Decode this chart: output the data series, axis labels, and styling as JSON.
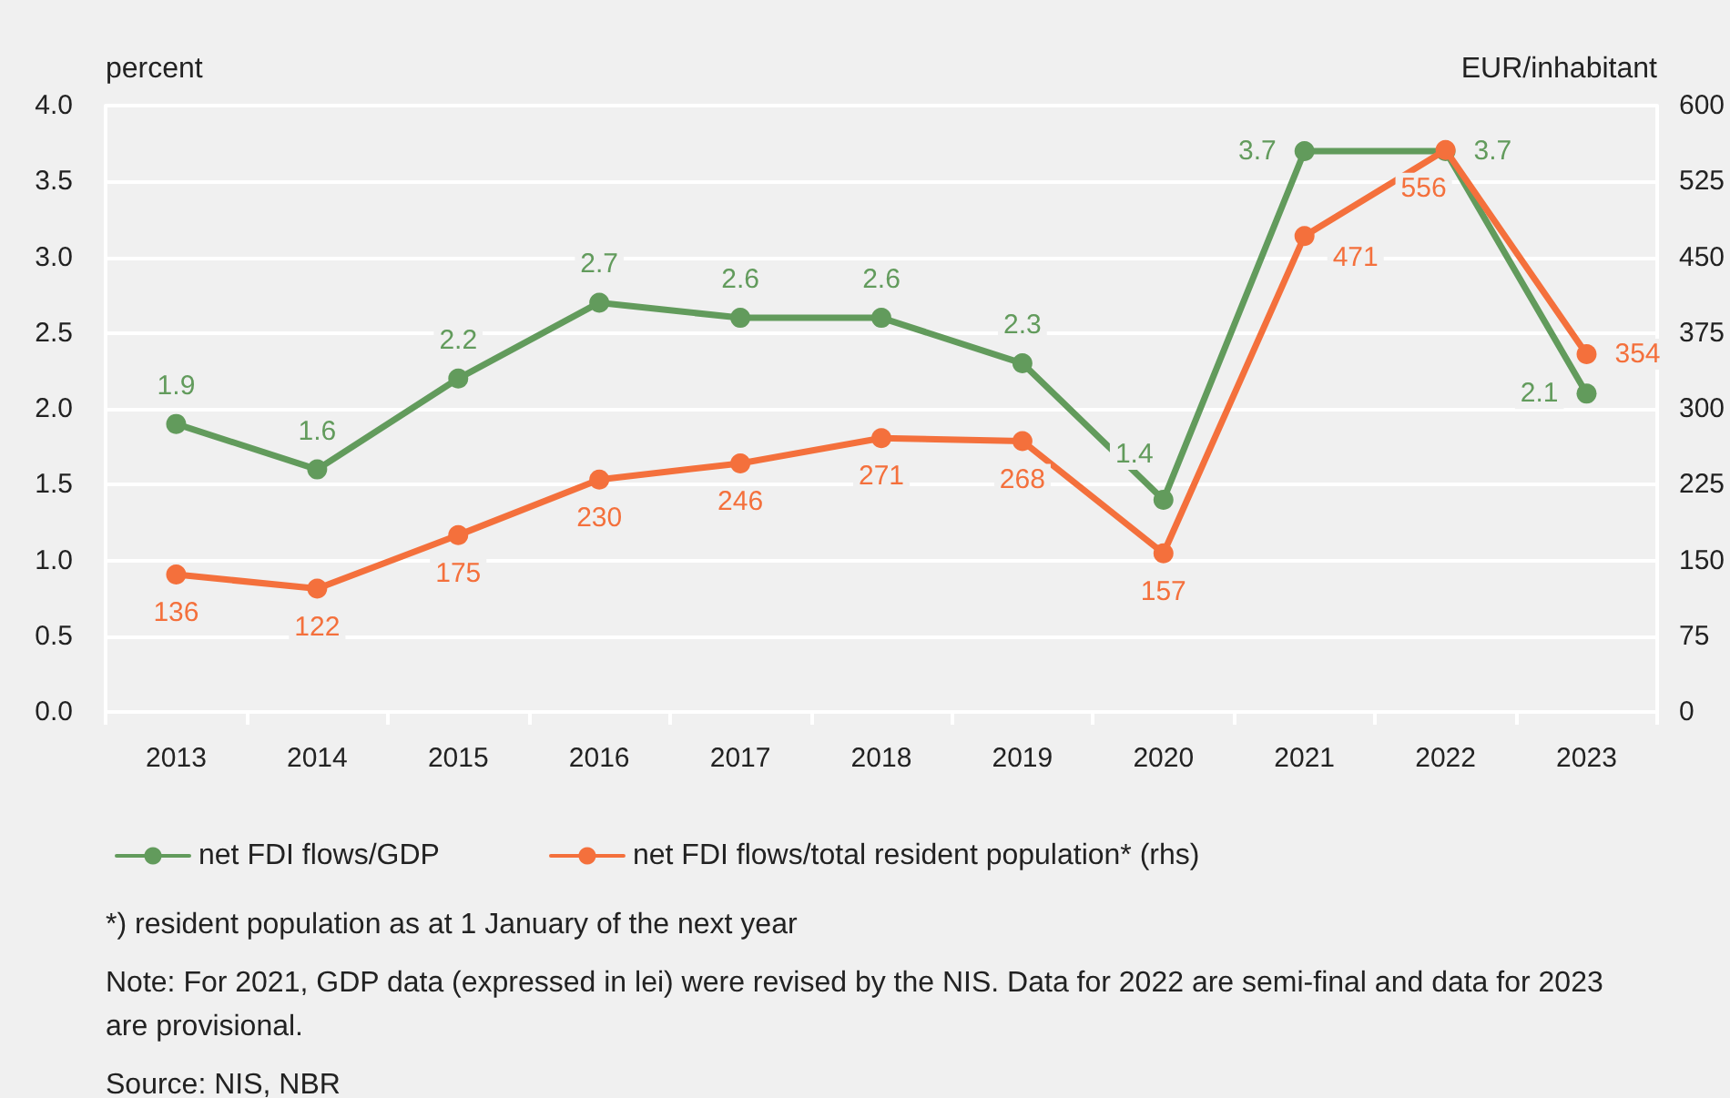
{
  "chart_data": {
    "type": "line",
    "ylabel": "percent",
    "y2label": "EUR/inhabitant",
    "categories": [
      "2013",
      "2014",
      "2015",
      "2016",
      "2017",
      "2018",
      "2019",
      "2020",
      "2021",
      "2022",
      "2023"
    ],
    "series": [
      {
        "name": "net FDI flows/GDP",
        "color": "#629b5c",
        "values": [
          1.9,
          1.6,
          2.2,
          2.7,
          2.6,
          2.6,
          2.3,
          1.4,
          3.7,
          3.7,
          2.1
        ]
      },
      {
        "name": "net FDI flows/total resident population* (rhs)",
        "color": "#f4703c",
        "axis": "y2",
        "values": [
          136,
          122,
          175,
          230,
          246,
          271,
          268,
          157,
          471,
          556,
          354
        ]
      }
    ],
    "ylim": [
      0,
      4
    ],
    "yticks": [
      {
        "value": 0,
        "label": "0.0"
      },
      0.5,
      {
        "value": 1,
        "label": "1.0"
      },
      1.5,
      {
        "value": 2,
        "label": "2.0"
      },
      2.5,
      {
        "value": 3,
        "label": "3.0"
      },
      3.5,
      {
        "value": 4,
        "label": "4.0"
      }
    ],
    "y2lim": [
      0,
      600
    ],
    "y2ticks": [
      0,
      75,
      150,
      225,
      300,
      375,
      450,
      525,
      600
    ],
    "grid": "y",
    "legend": "bottom left",
    "marker": "circle",
    "line_style": "solid",
    "data_labels": true,
    "annotations": [
      "*) resident population as at 1 January of the next year",
      "Note: For 2021, GDP data (expressed in lei) were revised by the NIS. Data for 2022 are semi-final and data for 2023 are provisional.",
      "Source: NIS, NBR"
    ]
  }
}
